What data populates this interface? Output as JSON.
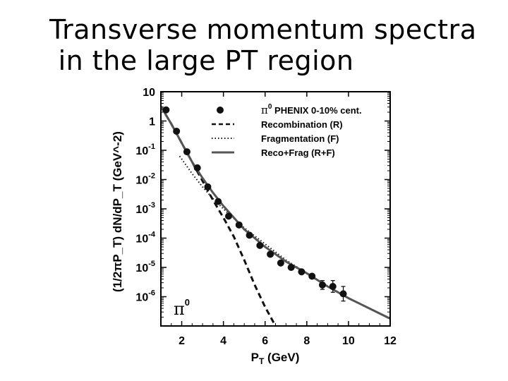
{
  "slide": {
    "title_line1": "Transverse momentum spectra",
    "title_line2": " in the large PT region"
  },
  "chart_data": {
    "type": "scatter",
    "title": "",
    "xlabel": "P",
    "xlabel_sub": "T",
    "xlabel_unit": " (GeV)",
    "ylabel": "(1/2πP_T) dN/dP_T (GeV^-2)",
    "xlim": [
      1,
      12
    ],
    "ylim_log10": [
      -7,
      1
    ],
    "x_ticks": [
      2,
      4,
      6,
      8,
      10,
      12
    ],
    "x_tick_labels": [
      "2",
      "4",
      "6",
      "8",
      "10",
      "12"
    ],
    "y_ticks_log10": [
      1,
      0,
      -1,
      -2,
      -3,
      -4,
      -5,
      -6
    ],
    "y_tick_labels": [
      {
        "base": "10",
        "exp": ""
      },
      {
        "base": "1",
        "exp": ""
      },
      {
        "base": "10",
        "exp": "-1"
      },
      {
        "base": "10",
        "exp": "-2"
      },
      {
        "base": "10",
        "exp": "-3"
      },
      {
        "base": "10",
        "exp": "-4"
      },
      {
        "base": "10",
        "exp": "-5"
      },
      {
        "base": "10",
        "exp": "-6"
      }
    ],
    "annotation": {
      "text": "π",
      "sup": "0"
    },
    "legend": {
      "placement": "top-right",
      "entries": [
        {
          "style": "marker",
          "label_sym": "π",
          "label_sup": "0",
          "label": " PHENIX 0-10% cent."
        },
        {
          "style": "dashed",
          "label_sym": "",
          "label_sup": "",
          "label": "Recombination (R)"
        },
        {
          "style": "dotted",
          "label_sym": "",
          "label_sup": "",
          "label": "Fragmentation (F)"
        },
        {
          "style": "solid",
          "label_sym": "",
          "label_sup": "",
          "label": "Reco+Frag (R+F)"
        }
      ]
    },
    "series": [
      {
        "name": "π0 PHENIX 0-10% cent.",
        "kind": "points",
        "x": [
          1.25,
          1.75,
          2.25,
          2.75,
          3.25,
          3.75,
          4.25,
          4.75,
          5.25,
          5.75,
          6.25,
          6.75,
          7.25,
          7.75,
          8.25,
          8.75,
          9.25,
          9.75
        ],
        "log10_y": [
          0.38,
          -0.35,
          -1.05,
          -1.6,
          -2.25,
          -2.75,
          -3.25,
          -3.55,
          -3.9,
          -4.25,
          -4.55,
          -4.85,
          -5.0,
          -5.15,
          -5.3,
          -5.6,
          -5.65,
          -5.9
        ],
        "error_log10": [
          0,
          0,
          0,
          0,
          0,
          0,
          0,
          0,
          0,
          0,
          0,
          0,
          0,
          0,
          0,
          0.15,
          0.2,
          0.25
        ]
      },
      {
        "name": "Recombination (R)",
        "kind": "dashed",
        "x": [
          1.0,
          1.5,
          2.0,
          2.5,
          3.0,
          3.5,
          4.0,
          4.5,
          5.0,
          5.5,
          6.0,
          6.5
        ],
        "log10_y": [
          0.5,
          -0.1,
          -0.75,
          -1.4,
          -2.05,
          -2.7,
          -3.3,
          -3.95,
          -4.75,
          -5.6,
          -6.35,
          -7.0
        ]
      },
      {
        "name": "Fragmentation (F)",
        "kind": "dotted",
        "x": [
          1.9,
          2.5,
          3.0,
          3.5,
          4.0,
          5.0,
          6.0,
          7.0,
          8.0,
          9.0,
          10.0,
          11.0,
          12.0
        ],
        "log10_y": [
          -1.2,
          -1.8,
          -2.25,
          -2.65,
          -3.0,
          -3.65,
          -4.2,
          -4.75,
          -5.2,
          -5.65,
          -6.05,
          -6.4,
          -6.75
        ]
      },
      {
        "name": "Reco+Frag (R+F)",
        "kind": "solid",
        "x": [
          1.0,
          1.5,
          2.0,
          2.5,
          3.0,
          3.5,
          4.0,
          4.5,
          5.0,
          5.5,
          6.0,
          7.0,
          8.0,
          9.0,
          10.0,
          11.0,
          12.0
        ],
        "log10_y": [
          0.5,
          -0.1,
          -0.75,
          -1.4,
          -1.95,
          -2.45,
          -2.9,
          -3.3,
          -3.7,
          -4.0,
          -4.3,
          -4.8,
          -5.2,
          -5.65,
          -6.05,
          -6.4,
          -6.75
        ]
      }
    ]
  }
}
